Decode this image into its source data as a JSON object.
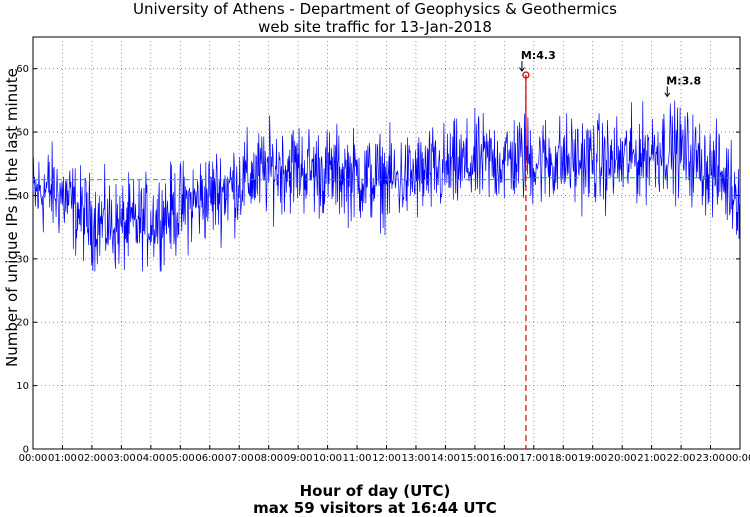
{
  "chart_data": {
    "type": "line",
    "title": "University of Athens - Department of Geophysics & Geothermics",
    "subtitle": "web site traffic for 13-Jan-2018",
    "xlabel": "Hour of day (UTC)",
    "ylabel": "Number of unique IPs in the last minute",
    "note": "max 59 visitors at 16:44 UTC",
    "xlim": [
      0,
      24
    ],
    "ylim": [
      0,
      65
    ],
    "yticks": [
      0,
      10,
      20,
      30,
      40,
      50,
      60
    ],
    "xtick_labels": [
      "00:00",
      "01:00",
      "02:00",
      "03:00",
      "04:00",
      "05:00",
      "06:00",
      "07:00",
      "08:00",
      "09:00",
      "10:00",
      "11:00",
      "12:00",
      "13:00",
      "14:00",
      "15:00",
      "16:00",
      "17:00",
      "18:00",
      "19:00",
      "20:00",
      "21:00",
      "22:00",
      "23:00",
      "00:00"
    ],
    "grid": true,
    "series": [
      {
        "color": "#0000ff",
        "x_hours": [
          0,
          0.5,
          1,
          1.5,
          2,
          2.5,
          3,
          3.5,
          4,
          4.5,
          5,
          5.5,
          6,
          6.5,
          7,
          7.5,
          8,
          8.5,
          9,
          9.5,
          10,
          10.5,
          11,
          11.5,
          12,
          12.5,
          13,
          13.5,
          14,
          14.5,
          15,
          15.5,
          16,
          16.5,
          17,
          17.5,
          18,
          18.5,
          19,
          19.5,
          20,
          20.5,
          21,
          21.5,
          22,
          22.5,
          23,
          23.5,
          24
        ],
        "trend": [
          40,
          41,
          40,
          37.5,
          36,
          35.5,
          35,
          35.5,
          36,
          37,
          38,
          39,
          40,
          41,
          42,
          43,
          44,
          44.5,
          44.5,
          44,
          43.5,
          43.5,
          43,
          42.5,
          42.5,
          42.5,
          43,
          43.5,
          44,
          44.5,
          45,
          45.5,
          45.5,
          46,
          45.5,
          45.5,
          45.5,
          45.5,
          45.5,
          45,
          45.5,
          46,
          47,
          47.5,
          47,
          45.5,
          44,
          42.5,
          40
        ],
        "peak": {
          "x": 16.733,
          "y": 59
        }
      },
      {
        "name_visible": false,
        "color": "#00cc00",
        "style": "dashed",
        "segments": [
          {
            "x": [
              0,
              16.733
            ],
            "y": [
              42.5,
              42.5
            ]
          },
          {
            "x": [
              16.733,
              24
            ],
            "y": [
              42.8,
              42.8
            ]
          }
        ]
      }
    ],
    "events": [
      {
        "label": "M:4.3",
        "x": 16.733,
        "y": 59,
        "color": "#dd0000",
        "vertical_line": true
      },
      {
        "label": "M:3.8",
        "x": 21.667,
        "y": 55,
        "vertical_line": false
      }
    ]
  }
}
